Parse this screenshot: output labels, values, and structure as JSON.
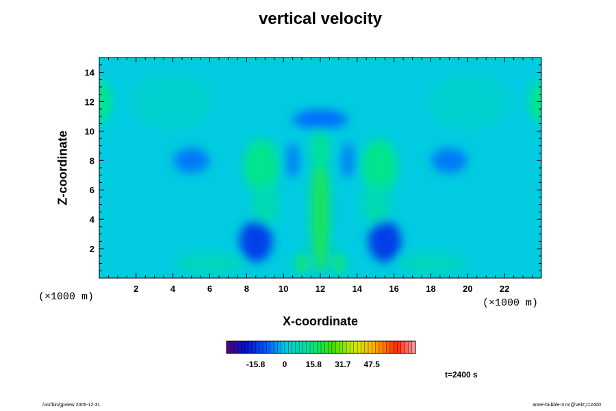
{
  "chart_data": {
    "type": "heatmap",
    "title": "vertical velocity",
    "xlabel": "X-coordinate",
    "ylabel": "Z-coordinate",
    "x_unit": "(×1000 m)",
    "z_unit": "(×1000 m)",
    "xlim": [
      0,
      24
    ],
    "ylim": [
      0,
      15
    ],
    "x_ticks": [
      2,
      4,
      6,
      8,
      10,
      12,
      14,
      16,
      18,
      20,
      22
    ],
    "y_ticks": [
      2,
      4,
      6,
      8,
      10,
      12,
      14
    ],
    "colorbar": {
      "range": [
        -31.7,
        71.3
      ],
      "tick_values": [
        -15.8,
        0,
        15.8,
        31.7,
        47.5
      ],
      "tick_labels": [
        "-15.8",
        "0",
        "15.8",
        "31.7",
        "47.5"
      ]
    },
    "features": [
      {
        "x": 12.0,
        "z": 4.5,
        "value": 18,
        "note": "central updraft column"
      },
      {
        "x": 12.0,
        "z": 8.8,
        "value": 12
      },
      {
        "x": 8.8,
        "z": 7.6,
        "value": 14
      },
      {
        "x": 15.2,
        "z": 7.6,
        "value": 14
      },
      {
        "x": 9.0,
        "z": 5.0,
        "value": 8
      },
      {
        "x": 15.0,
        "z": 5.0,
        "value": 8
      },
      {
        "x": 11.0,
        "z": 1.0,
        "value": 16
      },
      {
        "x": 13.0,
        "z": 1.0,
        "value": 16
      },
      {
        "x": 0.0,
        "z": 12.0,
        "value": 14
      },
      {
        "x": 24.0,
        "z": 12.0,
        "value": 14
      },
      {
        "x": 8.5,
        "z": 2.5,
        "value": -14
      },
      {
        "x": 15.5,
        "z": 2.5,
        "value": -14
      },
      {
        "x": 12.0,
        "z": 10.8,
        "value": -8
      },
      {
        "x": 10.5,
        "z": 8.0,
        "value": -6
      },
      {
        "x": 13.5,
        "z": 8.0,
        "value": -6
      },
      {
        "x": 5.0,
        "z": 8.0,
        "value": -7
      },
      {
        "x": 19.0,
        "z": 8.0,
        "value": -7
      },
      {
        "x": 4.0,
        "z": 12.0,
        "value": 3
      },
      {
        "x": 20.0,
        "z": 12.0,
        "value": 3
      },
      {
        "x": 6.0,
        "z": 1.0,
        "value": 6
      },
      {
        "x": 18.0,
        "z": 1.0,
        "value": 6
      }
    ],
    "time_label": "t=2400 s"
  },
  "footer": {
    "left": "/usr/bin/gpview 2005-12-31",
    "right": "arare-bubble-3.nc@VelZ,t=2400"
  },
  "colors": {
    "background_field": "#00cbe0",
    "frame": "#000000"
  }
}
